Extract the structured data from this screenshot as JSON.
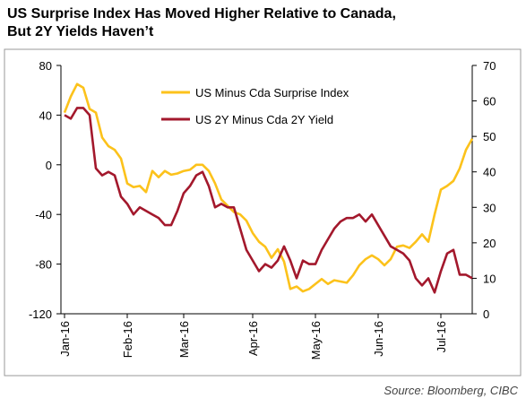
{
  "chart_data": {
    "type": "line",
    "title": [
      "US Surprise Index Has Moved Higher Relative to Canada,",
      "But 2Y Yields Haven’t"
    ],
    "source": "Source: Bloomberg, CIBC",
    "categories": [
      "Jan-16",
      null,
      null,
      null,
      null,
      null,
      null,
      null,
      null,
      null,
      "Feb-16",
      null,
      null,
      null,
      null,
      null,
      null,
      null,
      null,
      "Mar-16",
      null,
      null,
      null,
      null,
      null,
      null,
      null,
      null,
      null,
      null,
      "Apr-16",
      null,
      null,
      null,
      null,
      null,
      null,
      null,
      null,
      null,
      "May-16",
      null,
      null,
      null,
      null,
      null,
      null,
      null,
      null,
      null,
      "Jun-16",
      null,
      null,
      null,
      null,
      null,
      null,
      null,
      null,
      null,
      "Jul-16",
      null,
      null,
      null,
      null,
      null
    ],
    "series": [
      {
        "name": "US Minus Cda Surprise Index",
        "color": "#fcc21b",
        "axis": "y",
        "values": [
          42,
          55,
          65,
          62,
          45,
          42,
          22,
          15,
          12,
          5,
          -15,
          -18,
          -17,
          -22,
          -5,
          -10,
          -5,
          -8,
          -7,
          -5,
          -4,
          0,
          0,
          -5,
          -15,
          -28,
          -33,
          -38,
          -40,
          -45,
          -55,
          -62,
          -66,
          -75,
          -68,
          -78,
          -100,
          -98,
          -102,
          -100,
          -96,
          -92,
          -96,
          -93,
          -94,
          -95,
          -89,
          -81,
          -76,
          -73,
          -76,
          -81,
          -76,
          -66,
          -65,
          -67,
          -62,
          -56,
          -62,
          -40,
          -20,
          -17,
          -13,
          -3,
          12,
          21
        ]
      },
      {
        "name": "US 2Y Minus Cda 2Y Yield",
        "color": "#a3182c",
        "axis": "y2",
        "values": [
          56,
          55,
          58,
          58,
          56,
          41,
          39,
          40,
          39,
          33,
          31,
          28,
          30,
          29,
          28,
          27,
          25,
          25,
          29,
          34,
          36,
          39,
          40,
          36,
          30,
          31,
          30,
          30,
          24,
          18,
          15,
          12,
          14,
          13,
          15,
          19,
          15,
          10,
          15,
          14,
          14,
          18,
          21,
          24,
          26,
          27,
          27,
          28,
          26,
          28,
          25,
          22,
          19,
          18,
          17,
          15,
          10,
          8,
          10,
          6,
          12,
          17,
          18,
          11,
          11,
          10
        ]
      }
    ],
    "ylim": [
      -120,
      80
    ],
    "yticks": [
      -120,
      -80,
      -40,
      0,
      40,
      80
    ],
    "y2lim": [
      0,
      70
    ],
    "y2ticks": [
      0,
      10,
      20,
      30,
      40,
      50,
      60,
      70
    ],
    "legend": "top-left"
  }
}
